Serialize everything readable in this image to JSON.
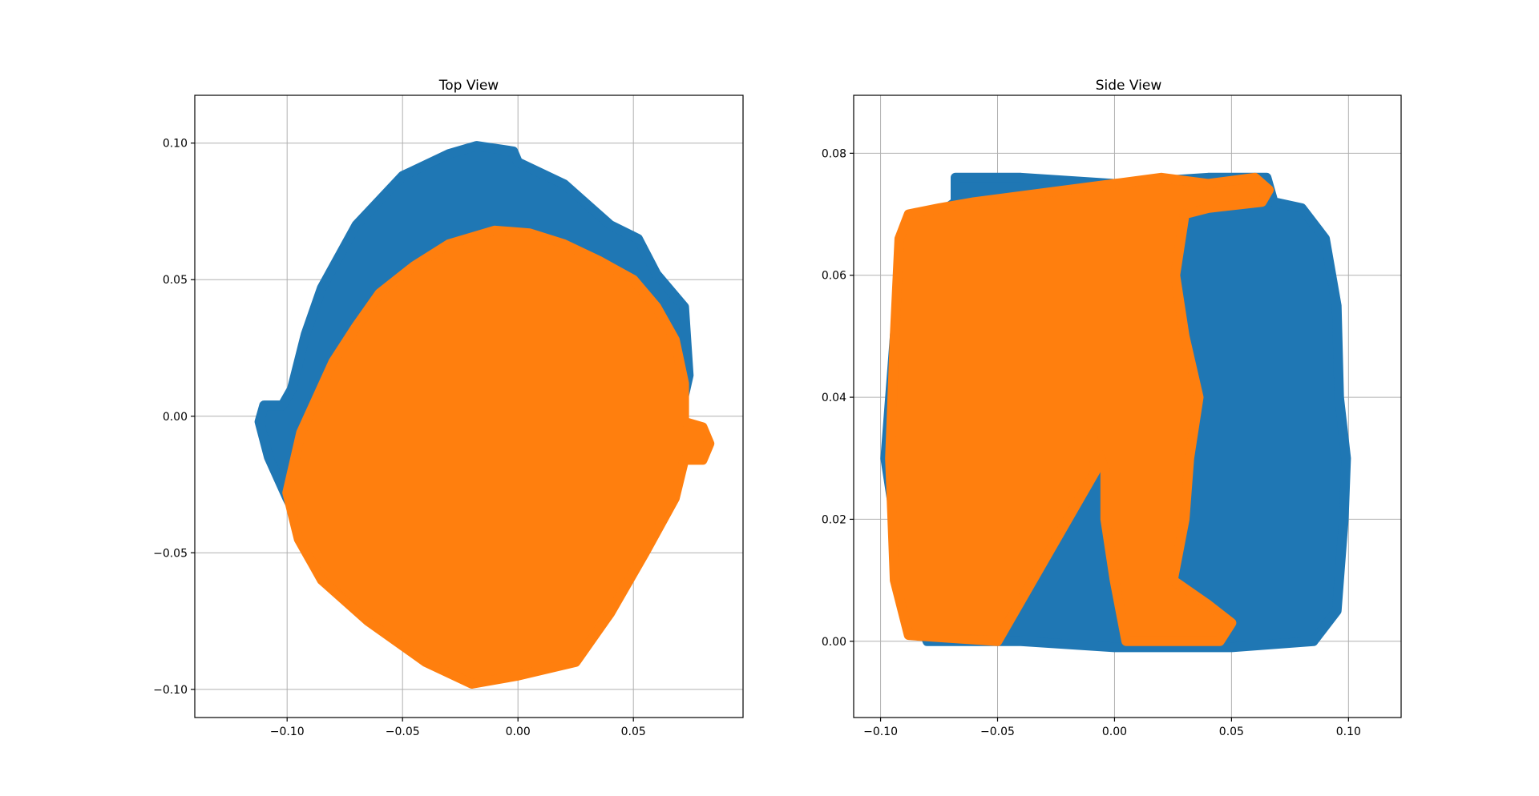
{
  "chart_data": [
    {
      "type": "scatter",
      "title": "Top View",
      "xlim": [
        -0.14,
        0.0975
      ],
      "ylim": [
        -0.1103,
        0.1175
      ],
      "xticks": [
        -0.1,
        -0.05,
        0.0,
        0.05
      ],
      "xtick_labels": [
        "−0.10",
        "−0.05",
        "0.00",
        "0.05"
      ],
      "yticks": [
        -0.1,
        -0.05,
        0.0,
        0.05,
        0.1
      ],
      "ytick_labels": [
        "−0.10",
        "−0.05",
        "0.00",
        "0.05",
        "0.10"
      ],
      "grid": true,
      "colors": [
        "#1f77b4",
        "#ff7f0e"
      ],
      "series": [
        {
          "color": "#1f77b4",
          "outline": [
            [
              -0.112,
              -0.002
            ],
            [
              -0.11,
              0.004
            ],
            [
              -0.102,
              0.004
            ],
            [
              -0.098,
              0.01
            ],
            [
              -0.092,
              0.03
            ],
            [
              -0.085,
              0.047
            ],
            [
              -0.07,
              0.07
            ],
            [
              -0.05,
              0.088
            ],
            [
              -0.03,
              0.096
            ],
            [
              -0.018,
              0.099
            ],
            [
              -0.002,
              0.097
            ],
            [
              0.0,
              0.093
            ],
            [
              0.02,
              0.085
            ],
            [
              0.04,
              0.07
            ],
            [
              0.052,
              0.065
            ],
            [
              0.06,
              0.052
            ],
            [
              0.072,
              0.04
            ],
            [
              0.074,
              0.015
            ],
            [
              0.07,
              0.0
            ],
            [
              0.06,
              -0.04
            ],
            [
              0.04,
              -0.07
            ],
            [
              0.01,
              -0.085
            ],
            [
              -0.03,
              -0.085
            ],
            [
              -0.06,
              -0.07
            ],
            [
              -0.085,
              -0.055
            ],
            [
              -0.1,
              -0.03
            ],
            [
              -0.108,
              -0.015
            ]
          ]
        },
        {
          "color": "#ff7f0e",
          "outline": [
            [
              -0.1,
              -0.028
            ],
            [
              -0.094,
              -0.006
            ],
            [
              -0.08,
              0.02
            ],
            [
              -0.07,
              0.033
            ],
            [
              -0.06,
              0.045
            ],
            [
              -0.045,
              0.055
            ],
            [
              -0.03,
              0.063
            ],
            [
              -0.01,
              0.068
            ],
            [
              0.005,
              0.067
            ],
            [
              0.02,
              0.063
            ],
            [
              0.035,
              0.057
            ],
            [
              0.05,
              0.05
            ],
            [
              0.06,
              0.04
            ],
            [
              0.068,
              0.028
            ],
            [
              0.072,
              0.012
            ],
            [
              0.072,
              -0.002
            ],
            [
              0.08,
              -0.004
            ],
            [
              0.083,
              -0.01
            ],
            [
              0.08,
              -0.016
            ],
            [
              0.072,
              -0.016
            ],
            [
              0.068,
              -0.03
            ],
            [
              0.055,
              -0.05
            ],
            [
              0.04,
              -0.072
            ],
            [
              0.025,
              -0.09
            ],
            [
              0.0,
              -0.095
            ],
            [
              -0.02,
              -0.098
            ],
            [
              -0.04,
              -0.09
            ],
            [
              -0.065,
              -0.075
            ],
            [
              -0.085,
              -0.06
            ],
            [
              -0.095,
              -0.045
            ]
          ]
        }
      ]
    },
    {
      "type": "scatter",
      "title": "Side View",
      "xlim": [
        -0.1115,
        0.1225
      ],
      "ylim": [
        -0.0125,
        0.0895
      ],
      "xticks": [
        -0.1,
        -0.05,
        0.0,
        0.05,
        0.1
      ],
      "xtick_labels": [
        "−0.10",
        "−0.05",
        "0.00",
        "0.05",
        "0.10"
      ],
      "yticks": [
        0.0,
        0.02,
        0.04,
        0.06,
        0.08
      ],
      "ytick_labels": [
        "0.00",
        "0.02",
        "0.04",
        "0.06",
        "0.08"
      ],
      "grid": true,
      "colors": [
        "#1f77b4",
        "#ff7f0e"
      ],
      "series": [
        {
          "color": "#1f77b4",
          "outline": [
            [
              -0.068,
              0.076
            ],
            [
              -0.04,
              0.076
            ],
            [
              0.0,
              0.075
            ],
            [
              0.04,
              0.076
            ],
            [
              0.065,
              0.076
            ],
            [
              0.068,
              0.072
            ],
            [
              0.08,
              0.071
            ],
            [
              0.09,
              0.066
            ],
            [
              0.095,
              0.055
            ],
            [
              0.096,
              0.04
            ],
            [
              0.099,
              0.03
            ],
            [
              0.098,
              0.02
            ],
            [
              0.095,
              0.005
            ],
            [
              0.085,
              0.0
            ],
            [
              0.05,
              -0.001
            ],
            [
              0.0,
              -0.001
            ],
            [
              -0.04,
              0.0
            ],
            [
              -0.08,
              0.0
            ],
            [
              -0.09,
              0.01
            ],
            [
              -0.098,
              0.03
            ],
            [
              -0.094,
              0.05
            ],
            [
              -0.09,
              0.066
            ],
            [
              -0.068,
              0.072
            ]
          ]
        },
        {
          "color": "#ff7f0e",
          "outline": [
            [
              -0.092,
              0.066
            ],
            [
              -0.088,
              0.07
            ],
            [
              -0.075,
              0.071
            ],
            [
              -0.06,
              0.072
            ],
            [
              -0.04,
              0.073
            ],
            [
              -0.02,
              0.074
            ],
            [
              0.0,
              0.075
            ],
            [
              0.02,
              0.076
            ],
            [
              0.04,
              0.075
            ],
            [
              0.06,
              0.076
            ],
            [
              0.066,
              0.074
            ],
            [
              0.063,
              0.072
            ],
            [
              0.04,
              0.071
            ],
            [
              0.03,
              0.07
            ],
            [
              0.026,
              0.06
            ],
            [
              0.03,
              0.05
            ],
            [
              0.036,
              0.04
            ],
            [
              0.032,
              0.03
            ],
            [
              0.03,
              0.02
            ],
            [
              0.025,
              0.01
            ],
            [
              0.04,
              0.006
            ],
            [
              0.05,
              0.003
            ],
            [
              0.045,
              0.0
            ],
            [
              0.03,
              0.0
            ],
            [
              0.005,
              0.0
            ],
            [
              0.0,
              0.01
            ],
            [
              -0.004,
              0.02
            ],
            [
              -0.004,
              0.028
            ],
            [
              -0.008,
              0.032
            ],
            [
              -0.01,
              0.034
            ],
            [
              -0.008,
              0.028
            ],
            [
              -0.05,
              0.0
            ],
            [
              -0.088,
              0.001
            ],
            [
              -0.094,
              0.01
            ],
            [
              -0.096,
              0.03
            ],
            [
              -0.094,
              0.05
            ]
          ]
        }
      ]
    }
  ]
}
